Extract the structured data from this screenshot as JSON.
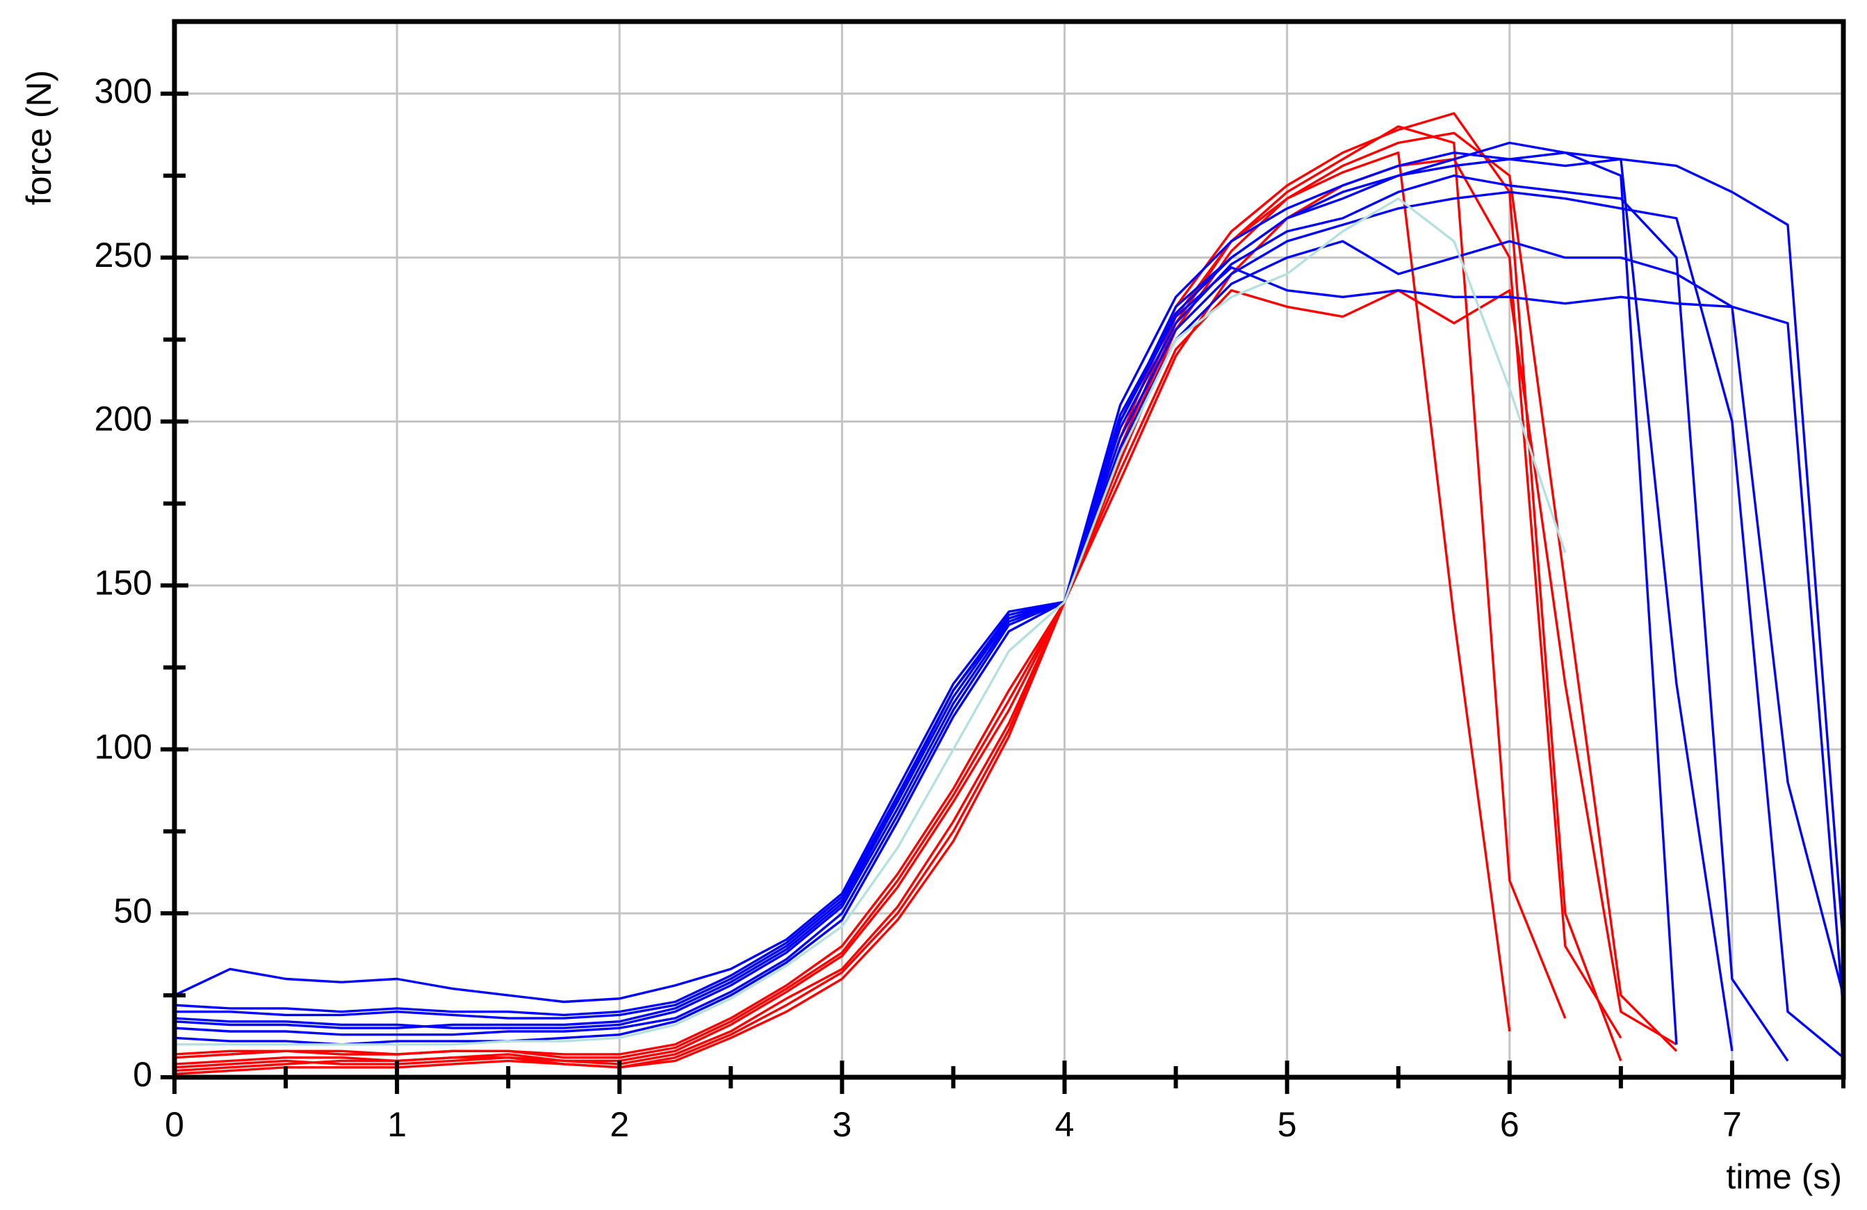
{
  "chart_data": {
    "type": "line",
    "xlabel": "time (s)",
    "ylabel": "force (N)",
    "xlim": [
      0,
      7.5
    ],
    "ylim": [
      0,
      322
    ],
    "xticks": [
      0,
      1,
      2,
      3,
      4,
      5,
      6,
      7
    ],
    "yticks": [
      0,
      50,
      100,
      150,
      200,
      250,
      300
    ],
    "xminorticks": [
      0.5,
      1.5,
      2.5,
      3.5,
      4.5,
      5.5,
      6.5,
      7.5
    ],
    "yminorticks": [
      25,
      75,
      125,
      175,
      225,
      275
    ],
    "grid": true,
    "x": [
      0,
      0.25,
      0.5,
      0.75,
      1,
      1.25,
      1.5,
      1.75,
      2,
      2.25,
      2.5,
      2.75,
      3,
      3.25,
      3.5,
      3.75,
      4,
      4.25,
      4.5,
      4.75,
      5,
      5.25,
      5.5,
      5.75,
      6,
      6.25,
      6.5,
      6.75,
      7,
      7.25,
      7.5
    ],
    "series": [
      {
        "color": "#ff0000",
        "values": [
          4,
          5,
          6,
          6,
          5,
          6,
          7,
          5,
          4,
          7,
          14,
          24,
          33,
          52,
          78,
          108,
          145,
          188,
          228,
          252,
          268,
          276,
          282,
          140,
          14,
          null,
          null,
          null,
          null,
          null,
          null
        ]
      },
      {
        "color": "#ff0000",
        "values": [
          2,
          3,
          4,
          5,
          5,
          6,
          6,
          5,
          5,
          8,
          16,
          26,
          37,
          58,
          84,
          112,
          145,
          192,
          232,
          255,
          270,
          280,
          290,
          285,
          60,
          18,
          null,
          null,
          null,
          null,
          null
        ]
      },
      {
        "color": "#ff0000",
        "values": [
          6,
          7,
          8,
          8,
          7,
          8,
          8,
          6,
          6,
          9,
          17,
          27,
          38,
          60,
          86,
          115,
          145,
          182,
          220,
          245,
          262,
          272,
          278,
          280,
          250,
          40,
          12,
          null,
          null,
          null,
          null
        ]
      },
      {
        "color": "#ff0000",
        "values": [
          3,
          4,
          5,
          4,
          4,
          5,
          6,
          4,
          3,
          5,
          12,
          20,
          30,
          48,
          72,
          104,
          145,
          195,
          235,
          258,
          272,
          282,
          289,
          294,
          270,
          50,
          5,
          null,
          null,
          null,
          null
        ]
      },
      {
        "color": "#ff0000",
        "values": [
          7,
          8,
          8,
          7,
          7,
          8,
          8,
          7,
          7,
          10,
          18,
          28,
          40,
          62,
          88,
          118,
          145,
          185,
          222,
          240,
          235,
          232,
          240,
          230,
          240,
          120,
          20,
          10,
          null,
          null,
          null
        ]
      },
      {
        "color": "#ff0000",
        "values": [
          1,
          2,
          3,
          3,
          3,
          4,
          5,
          4,
          3,
          6,
          13,
          22,
          32,
          50,
          75,
          106,
          145,
          190,
          230,
          255,
          268,
          278,
          285,
          288,
          275,
          150,
          25,
          8,
          null,
          null,
          null
        ]
      },
      {
        "color": "#0000ff",
        "values": [
          25,
          33,
          30,
          29,
          30,
          27,
          25,
          23,
          24,
          28,
          33,
          42,
          56,
          88,
          120,
          142,
          145,
          200,
          235,
          250,
          262,
          270,
          275,
          280,
          285,
          282,
          275,
          10,
          null,
          null,
          null
        ]
      },
      {
        "color": "#0000ff",
        "values": [
          20,
          20,
          19,
          19,
          20,
          19,
          18,
          18,
          19,
          22,
          30,
          40,
          54,
          85,
          118,
          140,
          145,
          205,
          238,
          255,
          265,
          272,
          278,
          282,
          280,
          278,
          280,
          120,
          8,
          null,
          null
        ]
      },
      {
        "color": "#0000ff",
        "values": [
          15,
          14,
          14,
          13,
          13,
          13,
          14,
          14,
          15,
          18,
          26,
          36,
          50,
          80,
          112,
          138,
          145,
          198,
          230,
          248,
          258,
          262,
          270,
          275,
          272,
          270,
          268,
          250,
          30,
          5,
          null
        ]
      },
      {
        "color": "#0000ff",
        "values": [
          18,
          17,
          17,
          16,
          16,
          15,
          15,
          15,
          16,
          20,
          28,
          38,
          52,
          82,
          114,
          139,
          145,
          195,
          228,
          245,
          255,
          260,
          265,
          268,
          270,
          268,
          265,
          262,
          200,
          20,
          6
        ]
      },
      {
        "color": "#0000ff",
        "values": [
          12,
          11,
          11,
          10,
          11,
          11,
          11,
          12,
          13,
          17,
          25,
          35,
          48,
          78,
          110,
          136,
          145,
          192,
          225,
          242,
          250,
          255,
          245,
          250,
          255,
          250,
          250,
          245,
          235,
          90,
          25
        ]
      },
      {
        "color": "#0000ff",
        "values": [
          22,
          21,
          21,
          20,
          21,
          20,
          20,
          19,
          20,
          23,
          31,
          41,
          55,
          86,
          118,
          141,
          145,
          202,
          233,
          250,
          262,
          268,
          275,
          278,
          280,
          282,
          280,
          278,
          270,
          260,
          40
        ]
      },
      {
        "color": "#0000ff",
        "values": [
          17,
          16,
          16,
          15,
          15,
          16,
          16,
          16,
          17,
          21,
          29,
          39,
          53,
          84,
          116,
          140,
          145,
          200,
          232,
          247,
          240,
          238,
          240,
          238,
          238,
          236,
          238,
          236,
          235,
          230,
          20
        ]
      },
      {
        "color": "#b4e0e0",
        "values": [
          10,
          10,
          10,
          10,
          10,
          10,
          11,
          11,
          12,
          16,
          24,
          34,
          46,
          70,
          100,
          130,
          145,
          190,
          225,
          238,
          245,
          258,
          268,
          255,
          210,
          160,
          null,
          null,
          null,
          null,
          null
        ]
      }
    ]
  }
}
